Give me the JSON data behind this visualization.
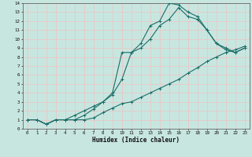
{
  "title": "",
  "xlabel": "Humidex (Indice chaleur)",
  "xlim": [
    -0.5,
    23.5
  ],
  "ylim": [
    0,
    14
  ],
  "xticks": [
    0,
    1,
    2,
    3,
    4,
    5,
    6,
    7,
    8,
    9,
    10,
    11,
    12,
    13,
    14,
    15,
    16,
    17,
    18,
    19,
    20,
    21,
    22,
    23
  ],
  "yticks": [
    0,
    1,
    2,
    3,
    4,
    5,
    6,
    7,
    8,
    9,
    10,
    11,
    12,
    13,
    14
  ],
  "bg_color": "#c8e6e0",
  "line_color": "#1a6e68",
  "grid_color": "#e8c8c8",
  "line1_x": [
    0,
    1,
    2,
    3,
    4,
    5,
    6,
    7,
    8,
    9,
    10,
    11,
    12,
    13,
    14,
    15,
    16,
    17,
    18,
    19,
    20,
    21,
    22,
    23
  ],
  "line1_y": [
    1,
    1,
    0.5,
    1,
    1,
    1,
    1,
    1.2,
    1.8,
    2.3,
    2.8,
    3,
    3.5,
    4,
    4.5,
    5,
    5.5,
    6.2,
    6.8,
    7.5,
    8,
    8.5,
    8.8,
    9.2
  ],
  "line2_x": [
    0,
    1,
    2,
    3,
    4,
    5,
    6,
    7,
    8,
    9,
    10,
    11,
    12,
    13,
    14,
    15,
    16,
    17,
    18,
    19,
    20,
    21,
    22,
    23
  ],
  "line2_y": [
    1,
    1,
    0.5,
    1,
    1,
    1.5,
    2,
    2.5,
    3,
    4,
    8.5,
    8.5,
    9.5,
    11.5,
    12,
    14,
    13.8,
    13,
    12.5,
    11,
    9.5,
    9,
    8.5,
    9
  ],
  "line3_x": [
    0,
    1,
    2,
    3,
    4,
    5,
    6,
    7,
    8,
    9,
    10,
    11,
    12,
    13,
    14,
    15,
    16,
    17,
    18,
    19,
    20,
    21,
    22,
    23
  ],
  "line3_y": [
    1,
    1,
    0.5,
    1,
    1,
    1,
    1.5,
    2.2,
    3,
    3.8,
    5.5,
    8.5,
    9,
    10,
    11.5,
    12.2,
    13.5,
    12.5,
    12.2,
    11,
    9.5,
    8.8,
    8.5,
    9
  ]
}
